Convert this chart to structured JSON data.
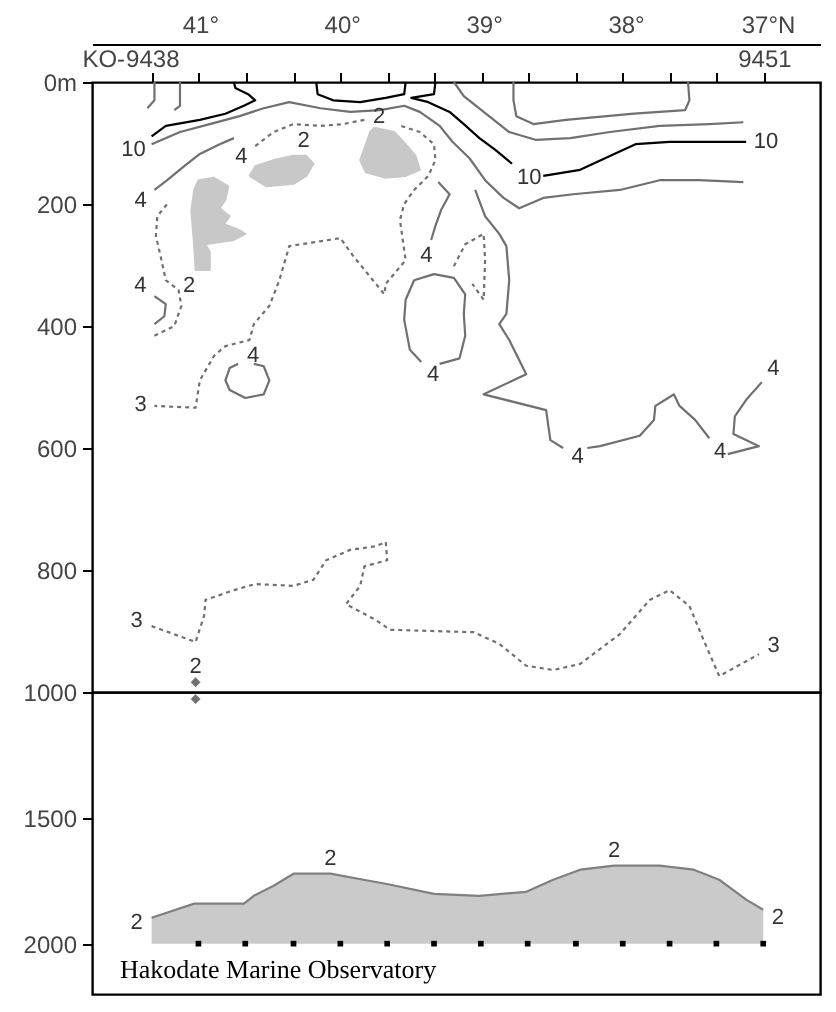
{
  "chart_data": [
    {
      "type": "line",
      "xlim": [
        41.76,
        36.63
      ],
      "xticks": [
        {
          "value": 41,
          "label": "41°"
        },
        {
          "value": 40,
          "label": "40°"
        },
        {
          "value": 39,
          "label": "39°"
        },
        {
          "value": 38,
          "label": "38°"
        },
        {
          "value": 37,
          "label": "37°N"
        }
      ],
      "x2lim": [
        9436.73,
        9452.19
      ],
      "x2label": "KO-",
      "x2ticks": [
        9438,
        {
          "value": 9439,
          "label": null
        },
        {
          "value": 9440,
          "label": null
        },
        {
          "value": 9441,
          "label": null
        },
        {
          "value": 9442,
          "label": null
        },
        {
          "value": 9443,
          "label": null
        },
        {
          "value": 9444,
          "label": null
        },
        {
          "value": 9445,
          "label": null
        },
        {
          "value": 9446,
          "label": null
        },
        {
          "value": 9447,
          "label": null
        },
        {
          "value": 9448,
          "label": null
        },
        {
          "value": 9449,
          "label": null
        },
        {
          "value": 9450,
          "label": null
        },
        9451
      ],
      "ylim": [
        1000,
        0
      ],
      "yticks": [
        {
          "value": 0,
          "label": "0m"
        },
        200,
        400,
        600,
        800,
        1000
      ],
      "series": [
        {
          "color": "#000000",
          "x": [
            40.76,
            40.75,
            40.66,
            40.61,
            40.69,
            40.82,
            41.0,
            41.24,
            41.34
          ],
          "values": [
            0,
            10,
            20,
            30,
            39,
            52,
            62,
            72,
            89
          ]
        },
        {
          "color": "#000000",
          "x": [
            40.18,
            40.17,
            40.06,
            39.87,
            39.69,
            39.56,
            39.55
          ],
          "values": [
            0,
            20,
            30,
            33,
            26,
            20,
            0
          ]
        },
        {
          "color": "#000000",
          "x": [
            39.34,
            39.35,
            39.51,
            39.39,
            39.24,
            39.14,
            39.03,
            38.92,
            38.8
          ],
          "values": [
            0,
            20,
            26,
            33,
            49,
            69,
            92,
            111,
            134
          ]
        },
        {
          "color": "#000000",
          "x": [
            38.58,
            38.32,
            38.08,
            37.93,
            37.69,
            37.41,
            37.15
          ],
          "values": [
            154,
            144,
            118,
            102,
            98,
            98,
            98
          ]
        },
        {
          "color": "#707070",
          "x": [
            38.79,
            38.79,
            38.77,
            38.65,
            38.42,
            37.94,
            37.58,
            37.55,
            37.56
          ],
          "values": [
            0,
            30,
            56,
            69,
            62,
            52,
            46,
            30,
            0
          ]
        },
        {
          "color": "#707070",
          "x": [
            41.32,
            41.32,
            41.37
          ],
          "values": [
            0,
            30,
            43
          ]
        },
        {
          "color": "#707070",
          "x": [
            41.14,
            41.14,
            41.18
          ],
          "values": [
            0,
            39,
            46
          ]
        },
        {
          "color": "#707070",
          "x": [
            41.34,
            41.14,
            40.93,
            40.72,
            40.55,
            40.37,
            40.15,
            39.94,
            39.73,
            39.56,
            39.45,
            39.31,
            39.22,
            39.1,
            38.99,
            38.86,
            38.75,
            38.58,
            38.37,
            38.04,
            37.76,
            37.48,
            37.17
          ],
          "values": [
            102,
            82,
            69,
            56,
            43,
            33,
            43,
            49,
            46,
            39,
            49,
            72,
            98,
            125,
            161,
            190,
            207,
            190,
            184,
            177,
            161,
            161,
            164
          ]
        },
        {
          "color": "#707070",
          "x": [
            39.21,
            39.14,
            39.0,
            38.82,
            38.63,
            38.39,
            38.11,
            37.76,
            37.41,
            37.17
          ],
          "values": [
            0,
            23,
            49,
            82,
            95,
            92,
            82,
            72,
            69,
            66
          ]
        },
        {
          "color": "#707070",
          "x": [
            39.06,
            38.99,
            38.89,
            38.84,
            38.82,
            38.84,
            38.89,
            38.82,
            38.7,
            39.0,
            38.56,
            38.53,
            38.44
          ],
          "values": [
            177,
            220,
            249,
            269,
            325,
            380,
            397,
            423,
            479,
            512,
            538,
            587,
            600
          ]
        },
        {
          "color": "#707070",
          "x": [
            38.27,
            38.18,
            37.9,
            37.8,
            37.79,
            37.72,
            37.66,
            37.62,
            37.51,
            37.41
          ],
          "values": [
            600,
            597,
            580,
            554,
            531,
            521,
            512,
            531,
            554,
            584
          ]
        },
        {
          "color": "#707070",
          "x": [
            37.28,
            37.06,
            37.24,
            37.23,
            37.15,
            37.04
          ],
          "values": [
            610,
            597,
            577,
            548,
            521,
            492
          ]
        },
        {
          "color": "#707070",
          "x": [
            39.32,
            39.24,
            39.3,
            39.34,
            39.37
          ],
          "values": [
            164,
            184,
            210,
            236,
            259
          ]
        },
        {
          "color": "#707070",
          "x": [
            39.31,
            39.17,
            39.13,
            39.14,
            39.13,
            39.21,
            39.35,
            39.49,
            39.55,
            39.56,
            39.52,
            39.44
          ],
          "values": [
            462,
            453,
            416,
            380,
            348,
            321,
            315,
            325,
            357,
            390,
            439,
            459
          ]
        },
        {
          "color": "#707070",
          "line_style": "dotted",
          "x": [
            39.21,
            39.13,
            39.0,
            38.99,
            39.0,
            39.08
          ],
          "values": [
            302,
            266,
            249,
            292,
            357,
            331
          ]
        },
        {
          "color": "#707070",
          "line_style": "dotted",
          "x": [
            40.61,
            40.48,
            40.34,
            40.15,
            39.99,
            39.84
          ],
          "values": [
            105,
            82,
            69,
            72,
            69,
            62
          ]
        },
        {
          "color": "#707070",
          "line_style": "dotted",
          "x": [
            39.58,
            39.45,
            39.35,
            39.34,
            39.39,
            39.49,
            39.56,
            39.59,
            39.55,
            39.69,
            39.7,
            39.92,
            40.01,
            40.37,
            40.44,
            40.51,
            40.62,
            40.65,
            40.82,
            40.9,
            41.0,
            41.03,
            41.32
          ],
          "values": [
            72,
            82,
            102,
            128,
            154,
            177,
            200,
            226,
            292,
            331,
            348,
            285,
            256,
            269,
            325,
            367,
            397,
            423,
            433,
            449,
            489,
            534,
            531
          ]
        },
        {
          "color": "#707070",
          "x": [
            41.32,
            41.23,
            41.11,
            41.0,
            40.86,
            40.76
          ],
          "values": [
            177,
            161,
            138,
            118,
            102,
            92
          ]
        },
        {
          "color": "#707070",
          "x": [
            41.32,
            41.25,
            41.24,
            41.32
          ],
          "values": [
            397,
            384,
            364,
            351
          ]
        },
        {
          "color": "#707070",
          "line_style": "dotted",
          "x": [
            41.32,
            41.18,
            41.13,
            41.15,
            41.24,
            41.28,
            41.31,
            41.3,
            41.23
          ],
          "values": [
            416,
            400,
            367,
            341,
            325,
            282,
            252,
            220,
            200
          ]
        },
        {
          "color": "#707070",
          "x": [
            40.62,
            40.55,
            40.51,
            40.55,
            40.68,
            40.79,
            40.82,
            40.79,
            40.73
          ],
          "values": [
            462,
            466,
            489,
            512,
            518,
            505,
            489,
            469,
            462
          ]
        },
        {
          "color": "#707070",
          "line_style": "dotted",
          "x": [
            41.34,
            41.03,
            40.97,
            40.96,
            40.76,
            40.61,
            40.34,
            40.2,
            40.11,
            39.94,
            39.76,
            39.69,
            39.68,
            39.84,
            39.87,
            39.97,
            39.76,
            39.66,
            39.07,
            38.89,
            38.7,
            38.51,
            38.32,
            38.04,
            37.83,
            37.69,
            37.55,
            37.45,
            37.34,
            37.06
          ],
          "values": [
            892,
            918,
            875,
            849,
            833,
            823,
            826,
            816,
            784,
            767,
            761,
            754,
            784,
            794,
            826,
            856,
            882,
            898,
            902,
            921,
            957,
            964,
            954,
            905,
            849,
            833,
            859,
            915,
            974,
            938
          ]
        },
        {
          "type": "scatter",
          "color": "#707070",
          "marker": "diamond",
          "x": [
            41.03
          ],
          "values": [
            984
          ]
        },
        {
          "type": "area",
          "color": "#c8c8c8",
          "x": [
            41.01,
            40.9,
            40.8,
            40.82,
            40.86,
            40.79,
            40.83,
            40.72,
            40.68,
            40.76,
            40.96,
            40.93,
            40.93,
            41.03,
            41.04,
            41.06,
            41.04,
            41.01
          ],
          "values": [
            161,
            157,
            171,
            193,
            207,
            220,
            233,
            243,
            249,
            259,
            266,
            279,
            308,
            308,
            269,
            210,
            177,
            161
          ]
        },
        {
          "type": "area",
          "color": "#c8c8c8",
          "x": [
            40.65,
            40.61,
            40.48,
            40.34,
            40.25,
            40.2,
            40.25,
            40.34,
            40.53,
            40.65
          ],
          "values": [
            154,
            138,
            128,
            121,
            121,
            134,
            154,
            167,
            171,
            154
          ]
        },
        {
          "type": "area",
          "color": "#c8c8c8",
          "x": [
            39.77,
            39.63,
            39.55,
            39.48,
            39.45,
            39.55,
            39.69,
            39.83,
            39.87,
            39.83,
            39.8,
            39.77
          ],
          "values": [
            75,
            82,
            102,
            121,
            144,
            154,
            157,
            148,
            128,
            102,
            82,
            75
          ]
        }
      ],
      "annotations": [
        {
          "text": "10",
          "x": 41.34,
          "y": 89
        },
        {
          "text": "10",
          "x": 38.8,
          "y": 134
        },
        {
          "text": "10",
          "x": 37.15,
          "y": 98
        },
        {
          "text": "4",
          "x": 41.32,
          "y": 177
        },
        {
          "text": "4",
          "x": 40.61,
          "y": 105
        },
        {
          "text": "2",
          "x": 40.34,
          "y": 121
        },
        {
          "text": "2",
          "x": 39.84,
          "y": 62
        },
        {
          "text": "2",
          "x": 41.03,
          "y": 308
        },
        {
          "text": "4",
          "x": 39.37,
          "y": 259
        },
        {
          "text": "4",
          "x": 39.44,
          "y": 459
        },
        {
          "text": "4",
          "x": 38.44,
          "y": 600
        },
        {
          "text": "4",
          "x": 37.41,
          "y": 584
        },
        {
          "text": "4",
          "x": 37.04,
          "y": 492
        },
        {
          "text": "4",
          "x": 41.32,
          "y": 351
        },
        {
          "text": "4",
          "x": 40.73,
          "y": 462
        },
        {
          "text": "3",
          "x": 41.32,
          "y": 531
        },
        {
          "text": "3",
          "x": 41.34,
          "y": 892
        },
        {
          "text": "3",
          "x": 37.06,
          "y": 938
        },
        {
          "text": "2",
          "x": 41.03,
          "y": 984
        }
      ]
    },
    {
      "type": "line",
      "xlim": [
        41.76,
        36.63
      ],
      "ylim": [
        2200,
        1000
      ],
      "yticks": [
        1500,
        2000
      ],
      "tick_labels": "y",
      "series": [
        {
          "color": "#808080",
          "x": [
            41.34,
            41.04,
            40.86,
            40.69,
            40.62,
            40.48,
            40.34,
            40.08,
            39.77,
            39.69,
            39.35,
            39.03,
            38.7,
            38.51,
            38.32,
            38.08,
            37.76,
            37.52,
            37.34,
            37.15,
            37.03
          ],
          "values": [
            1897,
            1841,
            1841,
            1841,
            1810,
            1770,
            1722,
            1722,
            1754,
            1762,
            1802,
            1810,
            1794,
            1746,
            1706,
            1690,
            1690,
            1706,
            1746,
            1825,
            1865
          ],
          "upper": [
            1897,
            1841,
            1841,
            1841,
            1810,
            1770,
            1722,
            1722,
            1754,
            1762,
            1802,
            1810,
            1794,
            1746,
            1706,
            1690,
            1690,
            1706,
            1746,
            1825,
            1865
          ],
          "lower": [
            2000,
            2000,
            2000,
            2000,
            2000,
            2000,
            2000,
            2000,
            2000,
            2000,
            2000,
            2000,
            2000,
            2000,
            2000,
            2000,
            2000,
            2000,
            2000,
            2000,
            2000
          ]
        },
        {
          "type": "scatter",
          "color": "#707070",
          "marker": "diamond",
          "x": [
            41.03
          ],
          "values": [
            1028
          ]
        },
        {
          "type": "scatter",
          "color": "#000000",
          "marker": "square",
          "x": [
            41.01,
            40.68,
            40.34,
            40.01,
            39.68,
            39.35,
            39.02,
            38.69,
            38.35,
            38.02,
            37.69,
            37.36,
            37.03
          ],
          "values": [
            2000,
            2000,
            2000,
            2000,
            2000,
            2000,
            2000,
            2000,
            2000,
            2000,
            2000,
            2000,
            2000
          ]
        }
      ],
      "annotations": [
        {
          "text": "2",
          "x": 41.34,
          "y": 1897
        },
        {
          "text": "2",
          "x": 40.08,
          "y": 1722
        },
        {
          "text": "2",
          "x": 38.08,
          "y": 1690
        },
        {
          "text": "2",
          "x": 37.03,
          "y": 1865
        },
        "Hakodate Marine Observatory"
      ]
    }
  ]
}
